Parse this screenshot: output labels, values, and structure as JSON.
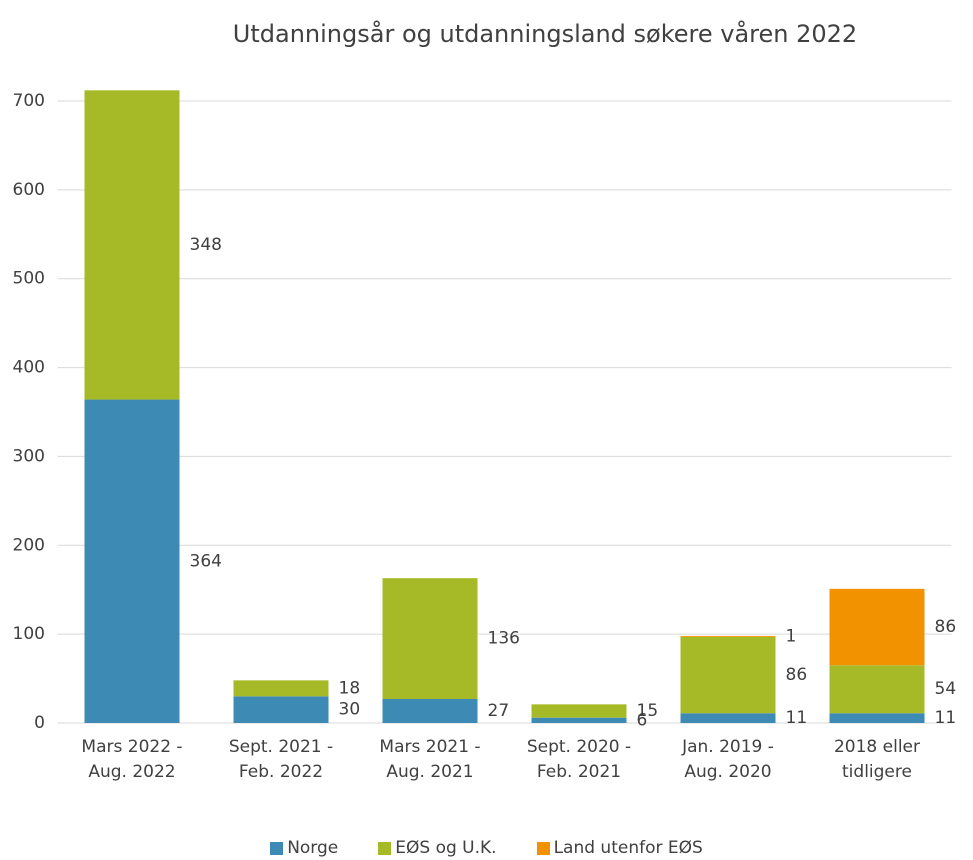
{
  "chart_data": {
    "type": "bar",
    "stacked": true,
    "title": "Utdanningsår og utdanningsland søkere våren 2022",
    "categories": [
      "Mars 2022 - Aug. 2022",
      "Sept. 2021 - Feb. 2022",
      "Mars 2021 - Aug. 2021",
      "Sept. 2020 - Feb. 2021",
      "Jan. 2019 - Aug. 2020",
      "2018 eller tidligere"
    ],
    "series": [
      {
        "name": "Norge",
        "color": "#3d8ab5",
        "values": [
          364,
          30,
          27,
          6,
          11,
          11
        ]
      },
      {
        "name": "EØS og U.K.",
        "color": "#a6ba28",
        "values": [
          348,
          18,
          136,
          15,
          86,
          54
        ]
      },
      {
        "name": "Land utenfor EØS",
        "color": "#f39200",
        "values": [
          null,
          null,
          null,
          null,
          1,
          86
        ]
      }
    ],
    "ylim": [
      0,
      700
    ],
    "yticks": [
      0,
      100,
      200,
      300,
      400,
      500,
      600,
      700
    ],
    "grid": true,
    "legend": "bottom"
  }
}
